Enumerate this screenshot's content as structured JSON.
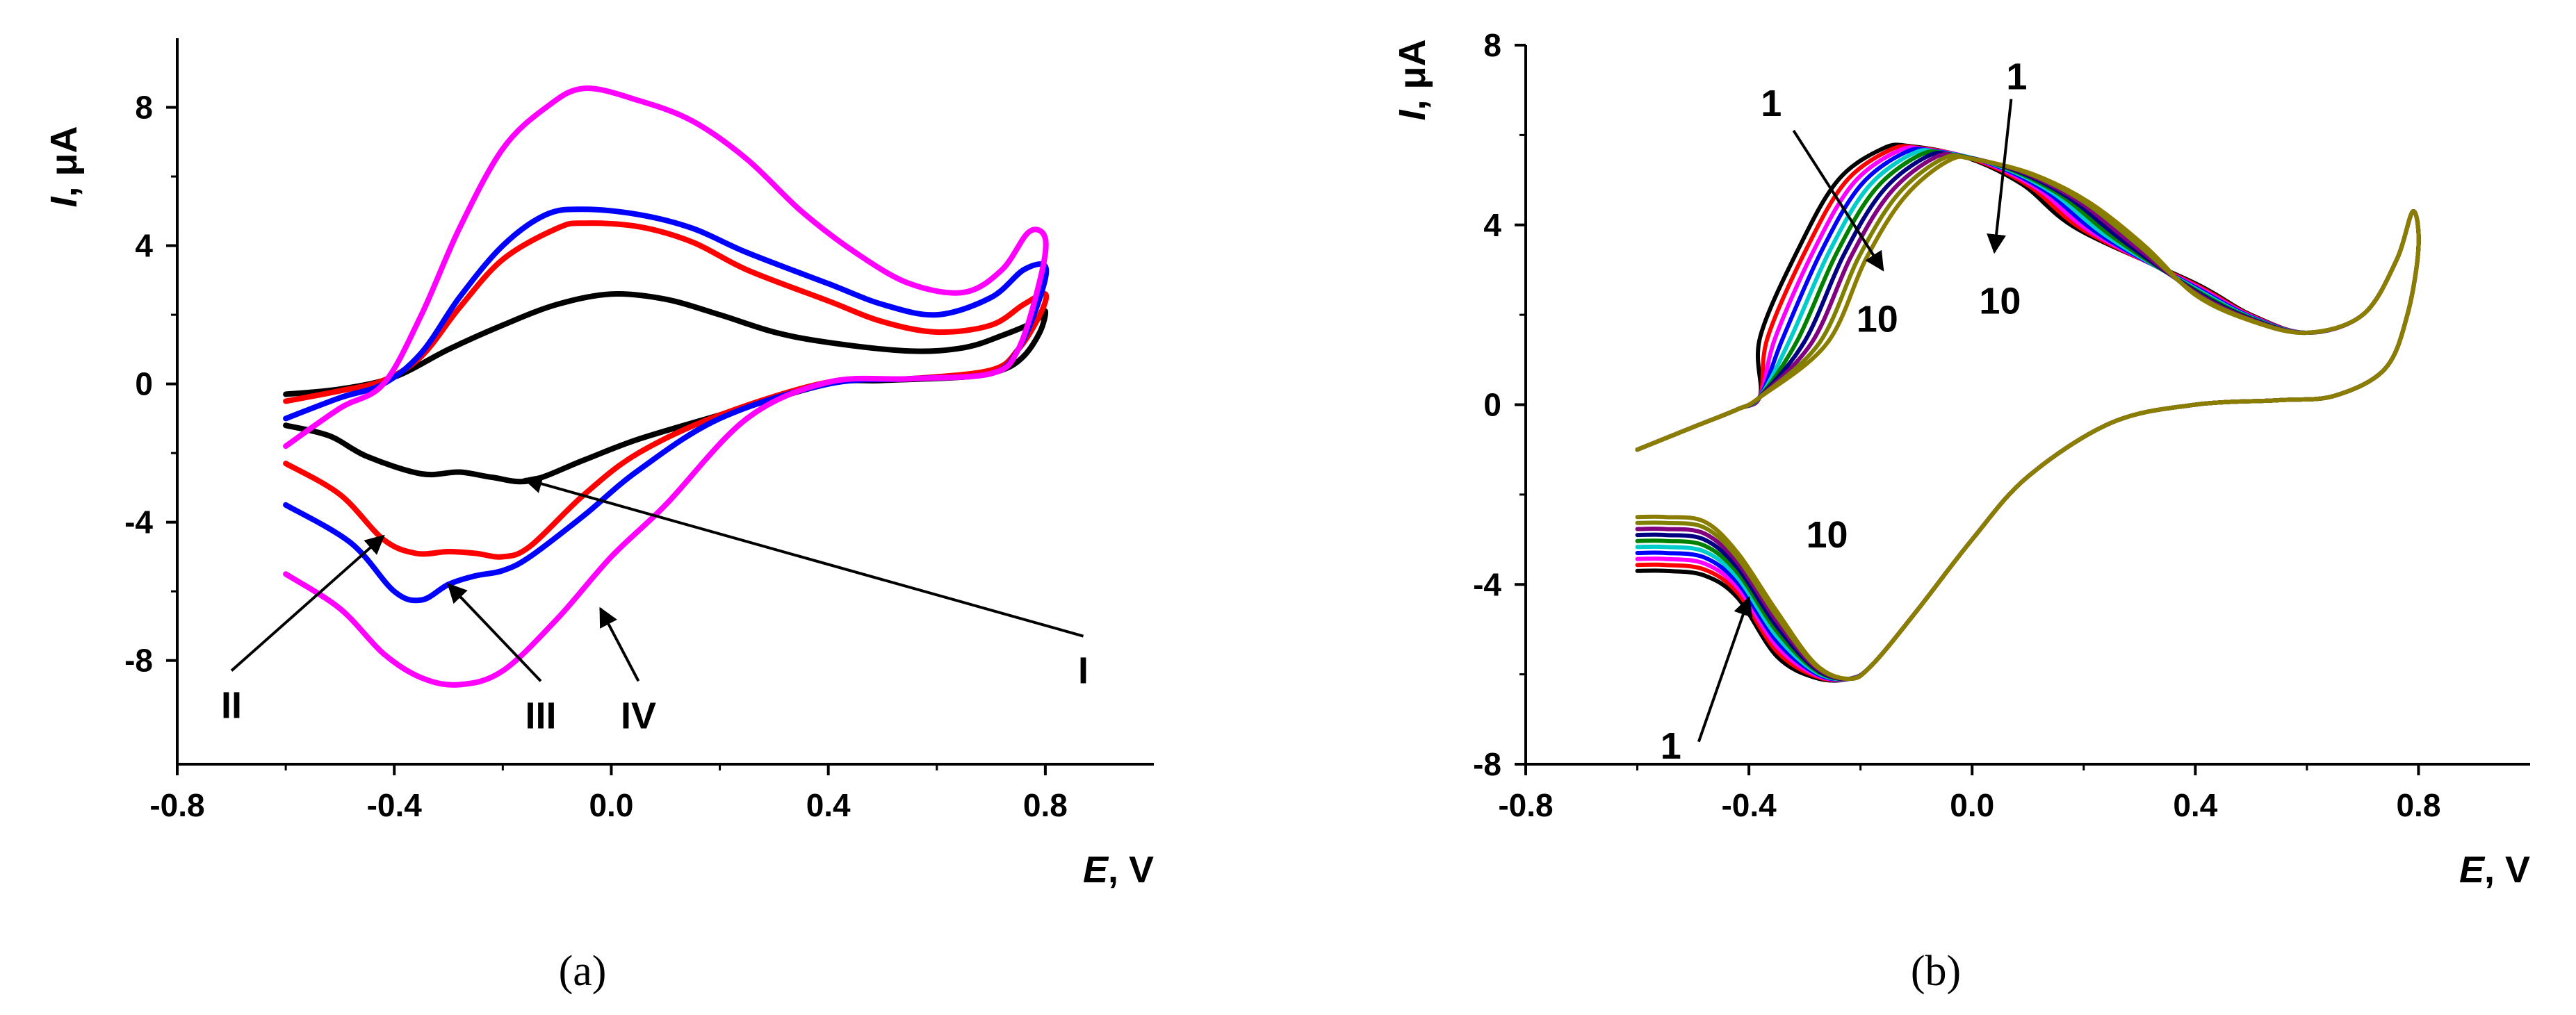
{
  "chart_data": [
    {
      "panel": "a",
      "type": "line",
      "caption": "(a)",
      "xlabel_italic": "E",
      "xlabel_rest": ", V",
      "ylabel_italic": "I",
      "ylabel_rest": ", μA",
      "xlim": [
        -0.8,
        1.0
      ],
      "ylim": [
        -11,
        10
      ],
      "xticks": [
        {
          "value": -0.8,
          "label": "-0.8"
        },
        {
          "value": -0.4,
          "label": "-0.4"
        },
        {
          "value": 0.0,
          "label": "0.0"
        },
        {
          "value": 0.4,
          "label": "0.4"
        },
        {
          "value": 0.8,
          "label": "0.8"
        }
      ],
      "yticks": [
        {
          "value": -8,
          "label": "-8"
        },
        {
          "value": -4,
          "label": "-4"
        },
        {
          "value": 0,
          "label": "0"
        },
        {
          "value": 4,
          "label": "4"
        },
        {
          "value": 8,
          "label": "8"
        }
      ],
      "series": [
        {
          "name": "I",
          "color": "#000000",
          "points": [
            [
              -0.6,
              -0.3
            ],
            [
              -0.5,
              -0.15
            ],
            [
              -0.4,
              0.2
            ],
            [
              -0.3,
              1.0
            ],
            [
              -0.2,
              1.7
            ],
            [
              -0.1,
              2.3
            ],
            [
              0.0,
              2.6
            ],
            [
              0.1,
              2.45
            ],
            [
              0.2,
              2.0
            ],
            [
              0.3,
              1.5
            ],
            [
              0.4,
              1.2
            ],
            [
              0.55,
              0.95
            ],
            [
              0.65,
              1.05
            ],
            [
              0.72,
              1.4
            ],
            [
              0.78,
              1.8
            ],
            [
              0.8,
              2.1
            ],
            [
              0.79,
              1.5
            ],
            [
              0.76,
              0.8
            ],
            [
              0.72,
              0.4
            ],
            [
              0.65,
              0.2
            ],
            [
              0.5,
              0.1
            ],
            [
              0.4,
              0.0
            ],
            [
              0.2,
              -0.9
            ],
            [
              0.05,
              -1.6
            ],
            [
              -0.05,
              -2.2
            ],
            [
              -0.15,
              -2.8
            ],
            [
              -0.22,
              -2.7
            ],
            [
              -0.28,
              -2.55
            ],
            [
              -0.35,
              -2.6
            ],
            [
              -0.45,
              -2.1
            ],
            [
              -0.52,
              -1.5
            ],
            [
              -0.6,
              -1.2
            ]
          ]
        },
        {
          "name": "II",
          "color": "#ff0000",
          "points": [
            [
              -0.6,
              -0.5
            ],
            [
              -0.5,
              -0.2
            ],
            [
              -0.42,
              0.1
            ],
            [
              -0.35,
              0.8
            ],
            [
              -0.28,
              2.2
            ],
            [
              -0.2,
              3.6
            ],
            [
              -0.1,
              4.5
            ],
            [
              -0.05,
              4.65
            ],
            [
              0.05,
              4.55
            ],
            [
              0.15,
              4.1
            ],
            [
              0.25,
              3.3
            ],
            [
              0.4,
              2.4
            ],
            [
              0.5,
              1.8
            ],
            [
              0.6,
              1.5
            ],
            [
              0.7,
              1.7
            ],
            [
              0.76,
              2.3
            ],
            [
              0.8,
              2.6
            ],
            [
              0.79,
              2.0
            ],
            [
              0.75,
              1.0
            ],
            [
              0.7,
              0.4
            ],
            [
              0.55,
              0.15
            ],
            [
              0.4,
              0.05
            ],
            [
              0.2,
              -0.9
            ],
            [
              0.05,
              -2.0
            ],
            [
              -0.05,
              -3.2
            ],
            [
              -0.15,
              -4.7
            ],
            [
              -0.2,
              -5.0
            ],
            [
              -0.25,
              -4.9
            ],
            [
              -0.3,
              -4.85
            ],
            [
              -0.36,
              -4.9
            ],
            [
              -0.42,
              -4.5
            ],
            [
              -0.5,
              -3.2
            ],
            [
              -0.6,
              -2.3
            ]
          ]
        },
        {
          "name": "III",
          "color": "#0000ff",
          "points": [
            [
              -0.6,
              -1.0
            ],
            [
              -0.5,
              -0.4
            ],
            [
              -0.42,
              0.0
            ],
            [
              -0.35,
              0.9
            ],
            [
              -0.28,
              2.5
            ],
            [
              -0.2,
              4.0
            ],
            [
              -0.12,
              4.9
            ],
            [
              -0.05,
              5.05
            ],
            [
              0.05,
              4.9
            ],
            [
              0.15,
              4.5
            ],
            [
              0.25,
              3.8
            ],
            [
              0.4,
              2.9
            ],
            [
              0.5,
              2.3
            ],
            [
              0.6,
              2.0
            ],
            [
              0.7,
              2.5
            ],
            [
              0.76,
              3.3
            ],
            [
              0.8,
              3.4
            ],
            [
              0.79,
              2.5
            ],
            [
              0.75,
              1.0
            ],
            [
              0.7,
              0.3
            ],
            [
              0.55,
              0.15
            ],
            [
              0.4,
              0.0
            ],
            [
              0.2,
              -1.0
            ],
            [
              0.05,
              -2.5
            ],
            [
              -0.05,
              -3.8
            ],
            [
              -0.15,
              -5.0
            ],
            [
              -0.2,
              -5.4
            ],
            [
              -0.25,
              -5.55
            ],
            [
              -0.3,
              -5.8
            ],
            [
              -0.35,
              -6.25
            ],
            [
              -0.4,
              -6.0
            ],
            [
              -0.48,
              -4.6
            ],
            [
              -0.6,
              -3.5
            ]
          ]
        },
        {
          "name": "IV",
          "color": "#ff00ff",
          "points": [
            [
              -0.6,
              -1.8
            ],
            [
              -0.5,
              -0.7
            ],
            [
              -0.42,
              0.0
            ],
            [
              -0.35,
              2.0
            ],
            [
              -0.28,
              4.5
            ],
            [
              -0.2,
              6.8
            ],
            [
              -0.12,
              8.0
            ],
            [
              -0.05,
              8.55
            ],
            [
              0.05,
              8.2
            ],
            [
              0.15,
              7.6
            ],
            [
              0.25,
              6.5
            ],
            [
              0.35,
              5.0
            ],
            [
              0.45,
              3.8
            ],
            [
              0.55,
              2.9
            ],
            [
              0.65,
              2.65
            ],
            [
              0.72,
              3.3
            ],
            [
              0.77,
              4.4
            ],
            [
              0.8,
              4.2
            ],
            [
              0.79,
              3.0
            ],
            [
              0.75,
              1.0
            ],
            [
              0.7,
              0.3
            ],
            [
              0.55,
              0.15
            ],
            [
              0.4,
              0.05
            ],
            [
              0.25,
              -1.0
            ],
            [
              0.1,
              -3.5
            ],
            [
              0.0,
              -5.0
            ],
            [
              -0.1,
              -6.8
            ],
            [
              -0.2,
              -8.3
            ],
            [
              -0.28,
              -8.7
            ],
            [
              -0.35,
              -8.5
            ],
            [
              -0.42,
              -7.8
            ],
            [
              -0.5,
              -6.5
            ],
            [
              -0.6,
              -5.5
            ]
          ]
        }
      ],
      "annotations": [
        {
          "text": "I",
          "tx": 0.87,
          "ty": -8.3,
          "ax": -0.16,
          "ay": -2.75
        },
        {
          "text": "II",
          "tx": -0.7,
          "ty": -9.3,
          "ax": -0.42,
          "ay": -4.4
        },
        {
          "text": "III",
          "tx": -0.13,
          "ty": -9.6,
          "ax": -0.3,
          "ay": -5.8
        },
        {
          "text": "IV",
          "tx": 0.05,
          "ty": -9.6,
          "ax": -0.02,
          "ay": -6.5
        }
      ]
    },
    {
      "panel": "b",
      "type": "line",
      "caption": "(b)",
      "xlabel_italic": "E",
      "xlabel_rest": ", V",
      "ylabel_italic": "I",
      "ylabel_rest": ", μA",
      "xlim": [
        -0.8,
        1.0
      ],
      "ylim": [
        -8,
        8
      ],
      "xticks": [
        {
          "value": -0.8,
          "label": "-0.8"
        },
        {
          "value": -0.4,
          "label": "-0.4"
        },
        {
          "value": 0.0,
          "label": "0.0"
        },
        {
          "value": 0.4,
          "label": "0.4"
        },
        {
          "value": 0.8,
          "label": "0.8"
        }
      ],
      "yticks": [
        {
          "value": -8,
          "label": "-8"
        },
        {
          "value": -4,
          "label": "-4"
        },
        {
          "value": 0,
          "label": "0"
        },
        {
          "value": 4,
          "label": "4"
        },
        {
          "value": 8,
          "label": "8"
        }
      ],
      "cycle_colors": [
        "#000000",
        "#ff0000",
        "#ff00ff",
        "#0000ff",
        "#00cccc",
        "#008000",
        "#000080",
        "#800080",
        "#808000",
        "#8b7d00"
      ],
      "base_cycle": {
        "forward": [
          [
            -0.6,
            -1.0
          ],
          [
            -0.5,
            -0.5
          ],
          [
            -0.42,
            -0.1
          ],
          [
            -0.38,
            0.2
          ],
          [
            -0.32,
            1.5
          ],
          [
            -0.25,
            3.5
          ],
          [
            -0.18,
            5.0
          ],
          [
            -0.1,
            5.7
          ],
          [
            -0.05,
            5.75
          ],
          [
            0.05,
            5.5
          ],
          [
            0.15,
            4.9
          ],
          [
            0.25,
            3.9
          ],
          [
            0.4,
            2.7
          ],
          [
            0.5,
            2.0
          ],
          [
            0.6,
            1.6
          ],
          [
            0.7,
            2.0
          ],
          [
            0.76,
            3.2
          ],
          [
            0.79,
            4.3
          ],
          [
            0.8,
            3.5
          ]
        ],
        "reverse": [
          [
            0.8,
            3.5
          ],
          [
            0.78,
            2.0
          ],
          [
            0.74,
            0.8
          ],
          [
            0.65,
            0.2
          ],
          [
            0.55,
            0.1
          ],
          [
            0.4,
            0.0
          ],
          [
            0.25,
            -0.4
          ],
          [
            0.1,
            -1.6
          ],
          [
            0.0,
            -3.0
          ],
          [
            -0.1,
            -4.6
          ],
          [
            -0.18,
            -5.8
          ],
          [
            -0.22,
            -6.1
          ],
          [
            -0.28,
            -5.9
          ],
          [
            -0.35,
            -5.0
          ],
          [
            -0.42,
            -3.7
          ],
          [
            -0.48,
            -2.9
          ],
          [
            -0.55,
            -2.8
          ],
          [
            -0.6,
            -2.8
          ]
        ]
      },
      "annotations": [
        {
          "text": "1",
          "tx": -0.36,
          "ty": 6.7,
          "ax": -0.32,
          "ay": 6.1,
          "hx": -0.16,
          "hy": 3.0
        },
        {
          "text": "10",
          "tx": -0.17,
          "ty": 1.9,
          "arrow": false
        },
        {
          "text": "1",
          "tx": 0.08,
          "ty": 7.3,
          "ax": 0.07,
          "ay": 6.8,
          "hx": 0.04,
          "hy": 3.4
        },
        {
          "text": "10",
          "tx": 0.05,
          "ty": 2.3,
          "arrow": false
        },
        {
          "text": "10",
          "tx": -0.26,
          "ty": -2.9,
          "arrow": false
        },
        {
          "text": "1",
          "tx": -0.54,
          "ty": -7.6,
          "ax": -0.49,
          "ay": -7.5,
          "hx": -0.4,
          "hy": -4.3
        }
      ]
    }
  ]
}
